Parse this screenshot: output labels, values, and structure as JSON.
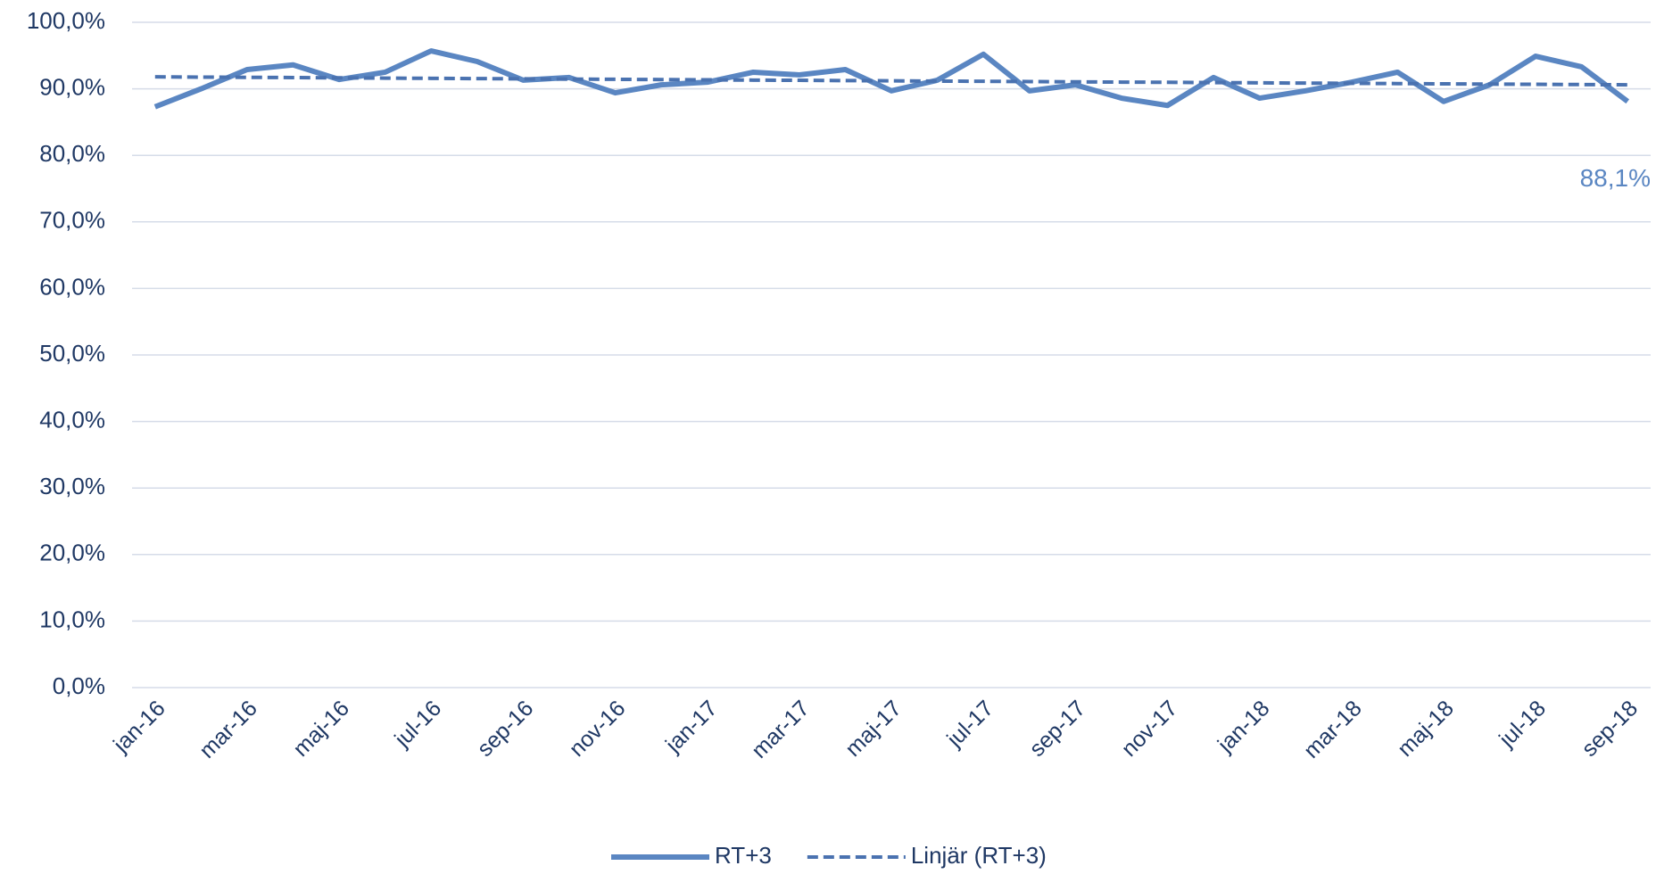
{
  "chart_data": {
    "type": "line",
    "categories": [
      "jan-16",
      null,
      "mar-16",
      null,
      "maj-16",
      null,
      "jul-16",
      null,
      "sep-16",
      null,
      "nov-16",
      null,
      "jan-17",
      null,
      "mar-17",
      null,
      "maj-17",
      null,
      "jul-17",
      null,
      "sep-17",
      null,
      "nov-17",
      null,
      "jan-18",
      null,
      "mar-18",
      null,
      "maj-18",
      null,
      "jul-18",
      null,
      "sep-18"
    ],
    "series": [
      {
        "name": "RT+3",
        "color": "#5a86c2",
        "style": "solid",
        "values": [
          87.3,
          90.0,
          92.9,
          93.6,
          91.4,
          92.5,
          95.7,
          94.1,
          91.3,
          91.7,
          89.4,
          90.6,
          91.0,
          92.5,
          92.1,
          92.9,
          89.7,
          91.3,
          95.2,
          89.7,
          90.6,
          88.6,
          87.5,
          91.7,
          88.6,
          89.7,
          91.0,
          92.5,
          88.1,
          90.6,
          94.9,
          93.3,
          88.1
        ],
        "value_labels": [
          null,
          null,
          null,
          null,
          null,
          null,
          null,
          null,
          null,
          null,
          null,
          null,
          null,
          null,
          null,
          null,
          null,
          null,
          null,
          null,
          null,
          null,
          null,
          null,
          null,
          null,
          null,
          null,
          null,
          null,
          null,
          null,
          "88,1%"
        ]
      },
      {
        "name": "Linjär (RT+3)",
        "color": "#4a72b0",
        "style": "dashed",
        "values": [
          91.8,
          91.76,
          91.73,
          91.69,
          91.65,
          91.61,
          91.58,
          91.54,
          91.5,
          91.46,
          91.43,
          91.39,
          91.35,
          91.31,
          91.28,
          91.24,
          91.2,
          91.16,
          91.13,
          91.09,
          91.05,
          91.01,
          90.98,
          90.94,
          90.9,
          90.86,
          90.83,
          90.79,
          90.75,
          90.71,
          90.68,
          90.64,
          90.6
        ]
      }
    ],
    "ylim": [
      0,
      100
    ],
    "yticks": [
      {
        "value": 0,
        "label": "0,0%"
      },
      {
        "value": 10,
        "label": "10,0%"
      },
      {
        "value": 20,
        "label": "20,0%"
      },
      {
        "value": 30,
        "label": "30,0%"
      },
      {
        "value": 40,
        "label": "40,0%"
      },
      {
        "value": 50,
        "label": "50,0%"
      },
      {
        "value": 60,
        "label": "60,0%"
      },
      {
        "value": 70,
        "label": "70,0%"
      },
      {
        "value": 80,
        "label": "80,0%"
      },
      {
        "value": 90,
        "label": "90,0%"
      },
      {
        "value": 100,
        "label": "100,0%"
      }
    ],
    "grid": true,
    "legend": "bottom"
  }
}
